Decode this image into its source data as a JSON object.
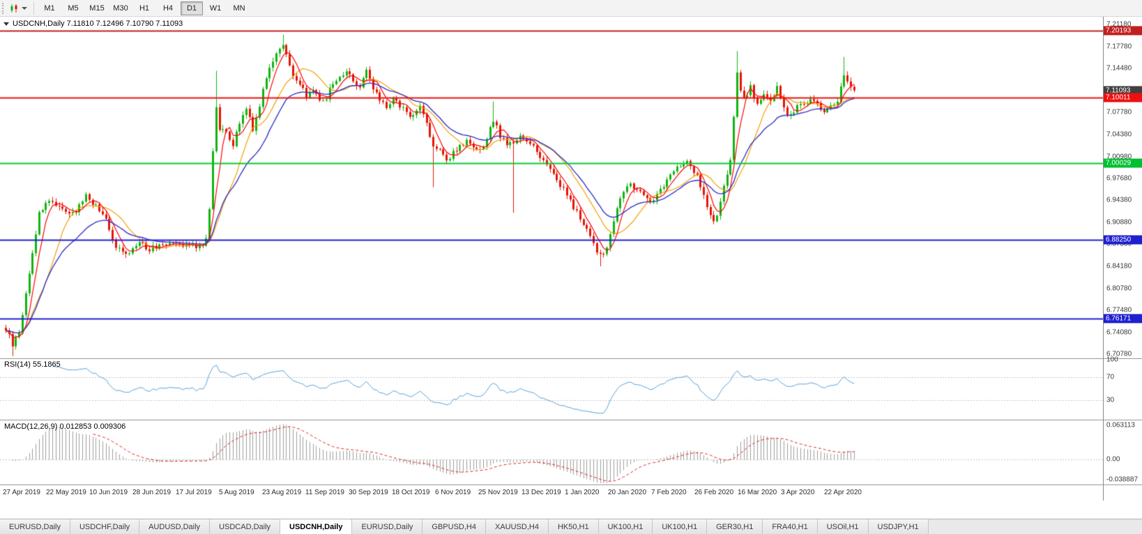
{
  "colors": {
    "bull": "#0fb40f",
    "bear": "#e41400",
    "ma_fast": "#ff0000",
    "ma_mid": "#f0a000",
    "ma_slow": "#3434c8",
    "rsi": "#569fd6",
    "macd_hist": "#9c9c9c",
    "macd_signal": "#e02020",
    "level_red_dark": "#c22020",
    "level_red": "#ee1010",
    "level_green": "#00cc30",
    "level_blue": "#2020d0",
    "bid_label_bg": "#404040"
  },
  "toolbar": {
    "chart_icon_name": "candlestick-chart-icon",
    "timeframes": [
      {
        "label": "M1",
        "active": false
      },
      {
        "label": "M5",
        "active": false
      },
      {
        "label": "M15",
        "active": false
      },
      {
        "label": "M30",
        "active": false
      },
      {
        "label": "H1",
        "active": false
      },
      {
        "label": "H4",
        "active": false
      },
      {
        "label": "D1",
        "active": true
      },
      {
        "label": "W1",
        "active": false
      },
      {
        "label": "MN",
        "active": false
      }
    ]
  },
  "chart": {
    "symbol": "USDCNH",
    "period": "Daily",
    "title": "USDCNH,Daily 7.11810 7.12496 7.10790 7.11093",
    "ohlc": {
      "open": "7.11810",
      "high": "7.12496",
      "low": "7.10790",
      "close": "7.11093"
    }
  },
  "price_axis": {
    "ticks": [
      "7.21180",
      "7.17780",
      "7.14480",
      "7.07780",
      "7.04380",
      "7.00980",
      "6.97680",
      "6.94380",
      "6.90880",
      "6.87580",
      "6.84180",
      "6.80780",
      "6.77480",
      "6.74080",
      "6.70780"
    ],
    "labels": [
      {
        "text": "7.20193",
        "value": 7.20193,
        "bg": "#c22020"
      },
      {
        "text": "7.11093",
        "value": 7.11093,
        "bg": "#404040"
      },
      {
        "text": "7.10011",
        "value": 7.10011,
        "bg": "#ee1010"
      },
      {
        "text": "7.00029",
        "value": 7.00029,
        "bg": "#00c030"
      },
      {
        "text": "6.88250",
        "value": 6.8825,
        "bg": "#2020d0"
      },
      {
        "text": "6.76171",
        "value": 6.76171,
        "bg": "#2020d0"
      }
    ]
  },
  "hlines": [
    {
      "value": 7.20193,
      "color": "#c22020",
      "width": 2
    },
    {
      "value": 7.10011,
      "color": "#ee1010",
      "width": 2
    },
    {
      "value": 7.00029,
      "color": "#00cc30",
      "width": 2
    },
    {
      "value": 6.8825,
      "color": "#2020d0",
      "width": 2
    },
    {
      "value": 6.76171,
      "color": "#2020d0",
      "width": 2
    }
  ],
  "date_axis": [
    "27 Apr 2019",
    "22 May 2019",
    "10 Jun 2019",
    "28 Jun 2019",
    "17 Jul 2019",
    "5 Aug 2019",
    "23 Aug 2019",
    "11 Sep 2019",
    "30 Sep 2019",
    "18 Oct 2019",
    "6 Nov 2019",
    "25 Nov 2019",
    "13 Dec 2019",
    "1 Jan 2020",
    "20 Jan 2020",
    "7 Feb 2020",
    "26 Feb 2020",
    "16 Mar 2020",
    "3 Apr 2020",
    "22 Apr 2020"
  ],
  "rsi": {
    "label": "RSI(14) 55.1865",
    "current": 55.1865,
    "levels": [
      "100",
      "70",
      "30"
    ]
  },
  "macd": {
    "label": "MACD(12,26,9) 0.012853 0.009306",
    "values": [
      "0.012853",
      "0.009306"
    ],
    "axis": [
      "0.063113",
      "0.00",
      "-0.038887"
    ]
  },
  "tabs": [
    {
      "label": "EURUSD,Daily",
      "active": false
    },
    {
      "label": "USDCHF,Daily",
      "active": false
    },
    {
      "label": "AUDUSD,Daily",
      "active": false
    },
    {
      "label": "USDCAD,Daily",
      "active": false
    },
    {
      "label": "USDCNH,Daily",
      "active": true
    },
    {
      "label": "EURUSD,Daily",
      "active": false
    },
    {
      "label": "GBPUSD,H4",
      "active": false
    },
    {
      "label": "XAUUSD,H4",
      "active": false
    },
    {
      "label": "HK50,H1",
      "active": false
    },
    {
      "label": "UK100,H1",
      "active": false
    },
    {
      "label": "UK100,H1",
      "active": false
    },
    {
      "label": "GER30,H1",
      "active": false
    },
    {
      "label": "FRA40,H1",
      "active": false
    },
    {
      "label": "USOil,H1",
      "active": false
    },
    {
      "label": "USDJPY,H1",
      "active": false
    }
  ],
  "chart_data": {
    "type": "candlestick",
    "symbol": "USDCNH",
    "timeframe": "Daily",
    "num_candles": 255,
    "price_range": [
      6.7,
      7.22
    ],
    "indicators": {
      "ma_fast_period": 5,
      "ma_mid_period": 13,
      "ma_slow_period": 20,
      "rsi_period": 14,
      "macd": [
        12,
        26,
        9
      ]
    },
    "anchors": [
      [
        0,
        6.746
      ],
      [
        2,
        6.722
      ],
      [
        4,
        6.74
      ],
      [
        6,
        6.8
      ],
      [
        8,
        6.862
      ],
      [
        10,
        6.924
      ],
      [
        13,
        6.944
      ],
      [
        16,
        6.934
      ],
      [
        20,
        6.921
      ],
      [
        24,
        6.95
      ],
      [
        27,
        6.934
      ],
      [
        30,
        6.912
      ],
      [
        32,
        6.882
      ],
      [
        34,
        6.867
      ],
      [
        36,
        6.857
      ],
      [
        38,
        6.871
      ],
      [
        40,
        6.881
      ],
      [
        43,
        6.867
      ],
      [
        46,
        6.876
      ],
      [
        50,
        6.881
      ],
      [
        54,
        6.875
      ],
      [
        58,
        6.873
      ],
      [
        60,
        6.881
      ],
      [
        61,
        6.93
      ],
      [
        62,
        7.02
      ],
      [
        63,
        7.088
      ],
      [
        64,
        7.054
      ],
      [
        66,
        7.044
      ],
      [
        68,
        7.027
      ],
      [
        70,
        7.061
      ],
      [
        72,
        7.087
      ],
      [
        74,
        7.051
      ],
      [
        76,
        7.089
      ],
      [
        78,
        7.134
      ],
      [
        80,
        7.157
      ],
      [
        82,
        7.176
      ],
      [
        83,
        7.184
      ],
      [
        84,
        7.167
      ],
      [
        86,
        7.131
      ],
      [
        88,
        7.117
      ],
      [
        90,
        7.104
      ],
      [
        92,
        7.111
      ],
      [
        94,
        7.097
      ],
      [
        96,
        7.101
      ],
      [
        98,
        7.121
      ],
      [
        100,
        7.131
      ],
      [
        102,
        7.141
      ],
      [
        104,
        7.127
      ],
      [
        106,
        7.117
      ],
      [
        108,
        7.141
      ],
      [
        110,
        7.111
      ],
      [
        112,
        7.097
      ],
      [
        114,
        7.087
      ],
      [
        116,
        7.097
      ],
      [
        118,
        7.087
      ],
      [
        120,
        7.077
      ],
      [
        122,
        7.071
      ],
      [
        124,
        7.087
      ],
      [
        126,
        7.061
      ],
      [
        128,
        7.027
      ],
      [
        130,
        7.017
      ],
      [
        132,
        7.001
      ],
      [
        134,
        7.017
      ],
      [
        136,
        7.027
      ],
      [
        138,
        7.031
      ],
      [
        140,
        7.021
      ],
      [
        142,
        7.017
      ],
      [
        144,
        7.034
      ],
      [
        146,
        7.067
      ],
      [
        148,
        7.041
      ],
      [
        150,
        7.031
      ],
      [
        152,
        7.027
      ],
      [
        154,
        7.041
      ],
      [
        156,
        7.034
      ],
      [
        158,
        7.027
      ],
      [
        160,
        7.011
      ],
      [
        162,
        6.997
      ],
      [
        164,
        6.984
      ],
      [
        166,
        6.967
      ],
      [
        168,
        6.951
      ],
      [
        170,
        6.931
      ],
      [
        172,
        6.917
      ],
      [
        174,
        6.897
      ],
      [
        176,
        6.877
      ],
      [
        178,
        6.857
      ],
      [
        180,
        6.871
      ],
      [
        182,
        6.911
      ],
      [
        184,
        6.947
      ],
      [
        186,
        6.961
      ],
      [
        187,
        6.971
      ],
      [
        189,
        6.957
      ],
      [
        191,
        6.951
      ],
      [
        193,
        6.941
      ],
      [
        195,
        6.951
      ],
      [
        197,
        6.967
      ],
      [
        199,
        6.984
      ],
      [
        201,
        6.994
      ],
      [
        203,
        7.001
      ],
      [
        205,
        6.997
      ],
      [
        207,
        6.977
      ],
      [
        209,
        6.947
      ],
      [
        211,
        6.917
      ],
      [
        212,
        6.907
      ],
      [
        214,
        6.937
      ],
      [
        216,
        6.984
      ],
      [
        217,
        7.009
      ],
      [
        218,
        7.074
      ],
      [
        219,
        7.134
      ],
      [
        220,
        7.114
      ],
      [
        221,
        7.097
      ],
      [
        223,
        7.117
      ],
      [
        225,
        7.087
      ],
      [
        227,
        7.107
      ],
      [
        229,
        7.097
      ],
      [
        231,
        7.114
      ],
      [
        233,
        7.081
      ],
      [
        235,
        7.071
      ],
      [
        237,
        7.087
      ],
      [
        239,
        7.094
      ],
      [
        241,
        7.097
      ],
      [
        243,
        7.087
      ],
      [
        245,
        7.077
      ],
      [
        247,
        7.087
      ],
      [
        249,
        7.097
      ],
      [
        251,
        7.134
      ],
      [
        252,
        7.124
      ],
      [
        253,
        7.117
      ],
      [
        254,
        7.111
      ]
    ],
    "wicks": [
      {
        "i": 2,
        "l": 6.705
      },
      {
        "i": 63,
        "h": 7.141
      },
      {
        "i": 83,
        "h": 7.196
      },
      {
        "i": 128,
        "l": 6.963
      },
      {
        "i": 146,
        "h": 7.094
      },
      {
        "i": 152,
        "l": 6.924
      },
      {
        "i": 178,
        "l": 6.842
      },
      {
        "i": 219,
        "h": 7.171
      },
      {
        "i": 251,
        "h": 7.162
      }
    ],
    "last_close": 7.11093
  }
}
